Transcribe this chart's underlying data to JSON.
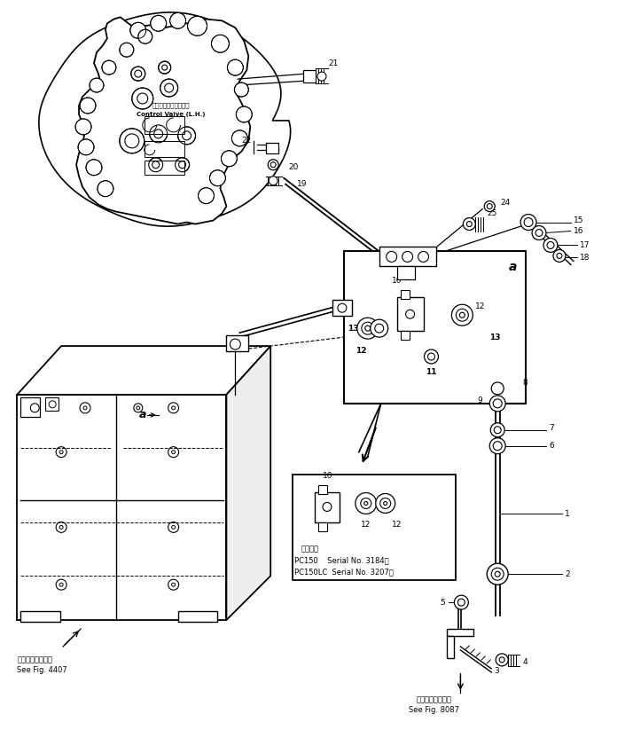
{
  "background_color": "#ffffff",
  "line_color": "#000000",
  "fig_width": 7.14,
  "fig_height": 8.23,
  "dpi": 100,
  "labels": {
    "control_valve_jp": "コントロールバルブ左",
    "control_valve_en": "Control Valve (L.H.)",
    "see_fig_4407_jp": "第４４０７図参照",
    "see_fig_4407_en": "See Fig. 4407",
    "see_fig_8087_jp": "第８０８７図参照",
    "see_fig_8087_en": "See Fig. 8087",
    "applicable_jp": "適用号機",
    "pc150": "PC150    Serial No. 3184～",
    "pc150lc": "PC150LC  Serial No. 3207～",
    "label_a": "a"
  }
}
